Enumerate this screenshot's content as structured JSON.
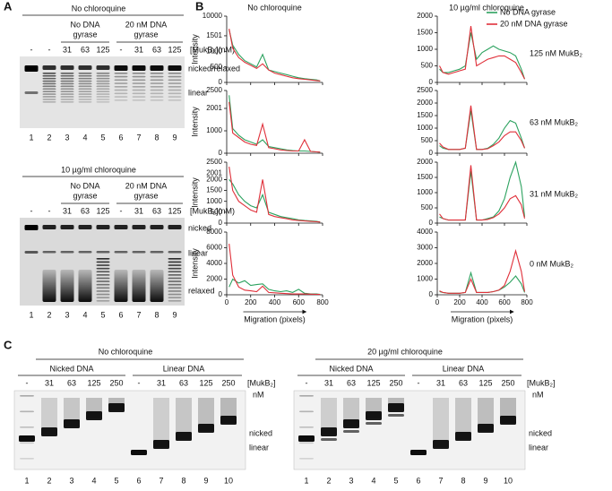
{
  "panel_labels": [
    "A",
    "B",
    "C"
  ],
  "gels_a": [
    {
      "title": "No chloroquine",
      "groups": [
        {
          "lines": [
            "No DNA",
            "gyrase"
          ]
        },
        {
          "lines": [
            "20 nM DNA",
            "gyrase"
          ]
        }
      ],
      "lane_headers": [
        "-",
        "-",
        "31",
        "63",
        "125",
        "-",
        "31",
        "63",
        "125"
      ],
      "concentration_label": "[MukB₂](nM)",
      "side_labels": [
        "nicked/relaxed",
        "linear"
      ],
      "lane_numbers": [
        1,
        2,
        3,
        4,
        5,
        6,
        7,
        8,
        9
      ]
    },
    {
      "title": "10 µg/ml chloroquine",
      "groups": [
        {
          "lines": [
            "No DNA",
            "gyrase"
          ]
        },
        {
          "lines": [
            "20 nM DNA",
            "gyrase"
          ]
        }
      ],
      "lane_headers": [
        "-",
        "-",
        "31",
        "63",
        "125",
        "-",
        "31",
        "63",
        "125"
      ],
      "concentration_label": "[MukB₂](nM)",
      "side_labels": [
        "nicked",
        "linear",
        "relaxed"
      ],
      "lane_numbers": [
        1,
        2,
        3,
        4,
        5,
        6,
        7,
        8,
        9
      ]
    }
  ],
  "chart_data": [
    {
      "type": "line",
      "title": "No chloroquine",
      "y_label": "Intensity",
      "x": [
        20,
        50,
        100,
        150,
        200,
        250,
        300,
        350,
        400,
        450,
        500,
        550,
        600,
        650,
        700,
        750,
        780
      ],
      "xlim": [
        0,
        800
      ],
      "xticks": [
        0,
        200,
        400,
        600,
        800
      ],
      "ylim": [
        0,
        10000
      ],
      "ybreak": [
        1600,
        9000
      ],
      "yticks": [
        0,
        500,
        1000,
        1501,
        10000
      ],
      "series": [
        {
          "color": "#2ca25f",
          "values": [
            5000,
            1200,
            900,
            700,
            600,
            500,
            900,
            400,
            350,
            300,
            250,
            200,
            150,
            120,
            100,
            80,
            50
          ]
        },
        {
          "color": "#e0303a",
          "values": [
            6000,
            1100,
            800,
            650,
            550,
            450,
            600,
            400,
            300,
            250,
            200,
            150,
            120,
            100,
            80,
            60,
            50
          ]
        }
      ]
    },
    {
      "type": "line",
      "title": "10 µg/ml chloroquine",
      "annotation": "125 nM MukB₂",
      "legend": "upper right",
      "x": [
        20,
        50,
        100,
        150,
        200,
        250,
        300,
        350,
        400,
        450,
        500,
        550,
        600,
        650,
        700,
        750,
        780
      ],
      "xlim": [
        0,
        800
      ],
      "xticks": [
        0,
        200,
        400,
        600,
        800
      ],
      "ylim": [
        0,
        2000
      ],
      "yticks": [
        0,
        500,
        1000,
        1500,
        2000
      ],
      "series": [
        {
          "name": "No DNA gyrase",
          "color": "#2ca25f",
          "values": [
            400,
            300,
            300,
            350,
            400,
            500,
            1500,
            700,
            900,
            1000,
            1100,
            1000,
            950,
            900,
            800,
            400,
            100
          ]
        },
        {
          "name": "20 nM DNA gyrase",
          "color": "#e0303a",
          "values": [
            500,
            300,
            250,
            300,
            350,
            400,
            1700,
            500,
            600,
            700,
            750,
            800,
            800,
            700,
            600,
            300,
            100
          ]
        }
      ]
    },
    {
      "type": "line",
      "y_label": "Intensity",
      "x": [
        20,
        50,
        100,
        150,
        200,
        250,
        300,
        350,
        400,
        450,
        500,
        550,
        600,
        650,
        700,
        750,
        780
      ],
      "xlim": [
        0,
        800
      ],
      "xticks": [
        0,
        200,
        400,
        600,
        800
      ],
      "ylim": [
        0,
        2500
      ],
      "ybreak": [
        2100,
        2400
      ],
      "yticks": [
        0,
        1000,
        2001,
        2500
      ],
      "series": [
        {
          "color": "#2ca25f",
          "values": [
            2450,
            1100,
            800,
            600,
            500,
            400,
            600,
            300,
            250,
            200,
            150,
            120,
            100,
            100,
            80,
            60,
            50
          ]
        },
        {
          "color": "#e0303a",
          "values": [
            2300,
            900,
            700,
            500,
            400,
            350,
            1300,
            250,
            200,
            150,
            120,
            100,
            100,
            600,
            80,
            60,
            50
          ]
        }
      ]
    },
    {
      "type": "line",
      "annotation": "63 nM MukB₂",
      "x": [
        20,
        50,
        100,
        150,
        200,
        250,
        300,
        350,
        400,
        450,
        500,
        550,
        600,
        650,
        700,
        750,
        780
      ],
      "xlim": [
        0,
        800
      ],
      "xticks": [
        0,
        200,
        400,
        600,
        800
      ],
      "ylim": [
        0,
        2500
      ],
      "yticks": [
        0,
        500,
        1000,
        1500,
        2000,
        2500
      ],
      "series": [
        {
          "color": "#2ca25f",
          "values": [
            300,
            200,
            150,
            150,
            150,
            200,
            1700,
            150,
            150,
            200,
            350,
            600,
            1000,
            1300,
            1200,
            600,
            200
          ]
        },
        {
          "color": "#e0303a",
          "values": [
            400,
            250,
            150,
            150,
            150,
            200,
            1900,
            150,
            150,
            180,
            300,
            450,
            700,
            850,
            850,
            500,
            200
          ]
        }
      ]
    },
    {
      "type": "line",
      "y_label": "Intensity",
      "x": [
        20,
        50,
        100,
        150,
        200,
        250,
        300,
        350,
        400,
        450,
        500,
        550,
        600,
        650,
        700,
        750,
        780
      ],
      "xlim": [
        0,
        800
      ],
      "xticks": [
        0,
        200,
        400,
        600,
        800
      ],
      "ylim": [
        0,
        2500
      ],
      "ybreak": [
        2100,
        2400
      ],
      "yticks": [
        0,
        500,
        1000,
        1500,
        2000,
        2001,
        2500
      ],
      "series": [
        {
          "color": "#2ca25f",
          "values": [
            2000,
            1800,
            1300,
            1000,
            800,
            700,
            1300,
            500,
            400,
            300,
            250,
            200,
            150,
            120,
            100,
            80,
            50
          ]
        },
        {
          "color": "#e0303a",
          "values": [
            2450,
            1500,
            1000,
            800,
            600,
            500,
            2000,
            400,
            300,
            250,
            200,
            150,
            120,
            100,
            80,
            60,
            50
          ]
        }
      ]
    },
    {
      "type": "line",
      "annotation": "31 nM MukB₂",
      "x": [
        20,
        50,
        100,
        150,
        200,
        250,
        300,
        350,
        400,
        450,
        500,
        550,
        600,
        650,
        700,
        750,
        780
      ],
      "xlim": [
        0,
        800
      ],
      "xticks": [
        0,
        200,
        400,
        600,
        800
      ],
      "ylim": [
        0,
        2000
      ],
      "yticks": [
        0,
        500,
        1000,
        1500,
        2000
      ],
      "series": [
        {
          "color": "#2ca25f",
          "values": [
            200,
            150,
            100,
            100,
            100,
            100,
            1700,
            100,
            100,
            150,
            200,
            400,
            800,
            1500,
            2000,
            1200,
            200
          ]
        },
        {
          "color": "#e0303a",
          "values": [
            300,
            150,
            100,
            100,
            100,
            100,
            1900,
            100,
            100,
            120,
            180,
            300,
            500,
            800,
            900,
            600,
            150
          ]
        }
      ]
    },
    {
      "type": "line",
      "y_label": "Intensity",
      "x_label": "Migration (pixels)",
      "x": [
        20,
        50,
        100,
        150,
        200,
        250,
        300,
        350,
        400,
        450,
        500,
        550,
        600,
        650,
        700,
        750,
        780
      ],
      "xlim": [
        0,
        800
      ],
      "xticks": [
        0,
        200,
        400,
        600,
        800
      ],
      "ylim": [
        0,
        8000
      ],
      "yticks": [
        0,
        2000,
        4000,
        6000,
        8000
      ],
      "series": [
        {
          "color": "#2ca25f",
          "values": [
            1000,
            2000,
            1500,
            1800,
            1200,
            1300,
            1400,
            700,
            500,
            400,
            500,
            300,
            700,
            200,
            100,
            100,
            50
          ]
        },
        {
          "color": "#e0303a",
          "values": [
            6500,
            2500,
            1000,
            600,
            500,
            400,
            1100,
            300,
            250,
            200,
            150,
            100,
            100,
            100,
            80,
            60,
            50
          ]
        }
      ]
    },
    {
      "type": "line",
      "annotation": "0 nM MukB₂",
      "x_label": "Migration (pixels)",
      "x": [
        20,
        50,
        100,
        150,
        200,
        250,
        300,
        350,
        400,
        450,
        500,
        550,
        600,
        650,
        700,
        750,
        780
      ],
      "xlim": [
        0,
        800
      ],
      "xticks": [
        0,
        200,
        400,
        600,
        800
      ],
      "ylim": [
        0,
        4000
      ],
      "yticks": [
        0,
        1000,
        2000,
        3000,
        4000
      ],
      "series": [
        {
          "color": "#2ca25f",
          "values": [
            200,
            150,
            100,
            100,
            100,
            150,
            1400,
            150,
            150,
            150,
            200,
            300,
            500,
            800,
            1200,
            700,
            150
          ]
        },
        {
          "color": "#e0303a",
          "values": [
            250,
            150,
            100,
            100,
            100,
            150,
            1000,
            150,
            150,
            150,
            200,
            300,
            600,
            1500,
            2800,
            1500,
            200
          ]
        }
      ]
    }
  ],
  "gels_c": [
    {
      "title": "No chloroquine",
      "groups": [
        {
          "lines": [
            "Nicked DNA"
          ]
        },
        {
          "lines": [
            "Linear DNA"
          ]
        }
      ],
      "lane_headers": [
        "-",
        "31",
        "63",
        "125",
        "250",
        "-",
        "31",
        "63",
        "125",
        "250"
      ],
      "concentration_label": [
        "[MukB₂]",
        "nM"
      ],
      "side_labels": [
        "nicked",
        "linear"
      ],
      "lane_numbers": [
        1,
        2,
        3,
        4,
        5,
        6,
        7,
        8,
        9,
        10
      ]
    },
    {
      "title": "20 µg/ml chloroquine",
      "groups": [
        {
          "lines": [
            "Nicked DNA"
          ]
        },
        {
          "lines": [
            "Linear DNA"
          ]
        }
      ],
      "lane_headers": [
        "-",
        "31",
        "63",
        "125",
        "250",
        "-",
        "31",
        "63",
        "125",
        "250"
      ],
      "concentration_label": [
        "[MukB₂]",
        "nM"
      ],
      "side_labels": [
        "nicked",
        "linear"
      ],
      "lane_numbers": [
        1,
        2,
        3,
        4,
        5,
        6,
        7,
        8,
        9,
        10
      ]
    }
  ]
}
